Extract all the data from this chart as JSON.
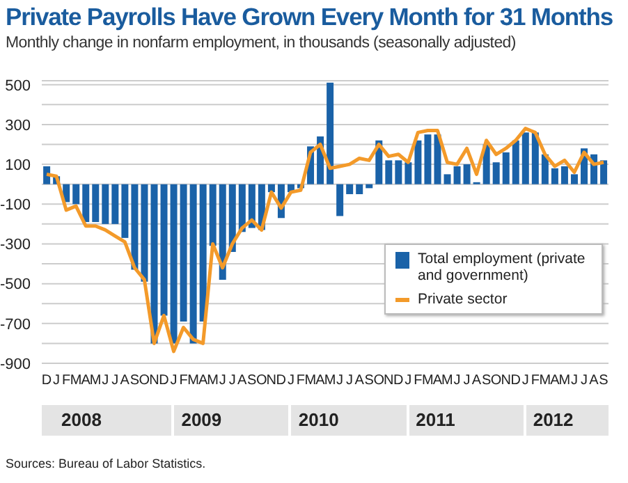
{
  "chart_data": {
    "type": "bar",
    "title": "Private Payrolls Have Grown Every Month for 31 Months",
    "subtitle": "Monthly change in nonfarm employment, in thousands (seasonally adjusted)",
    "categories": [
      "D",
      "J",
      "F",
      "M",
      "A",
      "M",
      "J",
      "J",
      "A",
      "S",
      "O",
      "N",
      "D",
      "J",
      "F",
      "M",
      "A",
      "M",
      "J",
      "J",
      "A",
      "S",
      "O",
      "N",
      "D",
      "J",
      "F",
      "M",
      "A",
      "M",
      "J",
      "J",
      "A",
      "S",
      "O",
      "N",
      "D",
      "J",
      "F",
      "M",
      "A",
      "M",
      "J",
      "J",
      "A",
      "S",
      "O",
      "N",
      "D",
      "J",
      "F",
      "M",
      "A",
      "M",
      "J",
      "J",
      "A",
      "S"
    ],
    "series": [
      {
        "name": "Total employment (private and government)",
        "color": "#1a62a8",
        "values": [
          90,
          40,
          -90,
          -100,
          -190,
          -190,
          -200,
          -200,
          -270,
          -430,
          -490,
          -800,
          -660,
          -800,
          -690,
          -800,
          -690,
          -310,
          -480,
          -340,
          -240,
          -220,
          -230,
          -40,
          -170,
          -40,
          -20,
          190,
          240,
          510,
          -160,
          -50,
          -50,
          -20,
          220,
          120,
          120,
          110,
          220,
          250,
          250,
          50,
          90,
          100,
          10,
          200,
          110,
          160,
          220,
          260,
          260,
          150,
          80,
          90,
          50,
          180,
          150,
          120
        ]
      },
      {
        "name": "Private sector",
        "type": "line",
        "color": "#f39a2a",
        "values": [
          50,
          40,
          -130,
          -110,
          -210,
          -210,
          -230,
          -260,
          -290,
          -420,
          -480,
          -800,
          -660,
          -840,
          -720,
          -780,
          -800,
          -300,
          -420,
          -300,
          -220,
          -180,
          -230,
          -40,
          -120,
          -40,
          -30,
          160,
          200,
          80,
          90,
          100,
          130,
          120,
          200,
          140,
          150,
          110,
          260,
          270,
          270,
          110,
          100,
          180,
          50,
          220,
          150,
          180,
          220,
          280,
          260,
          150,
          90,
          120,
          60,
          160,
          100,
          110
        ]
      }
    ],
    "ylim": [
      -900,
      520
    ],
    "yticks": [
      {
        "value": -900,
        "label": "-900"
      },
      {
        "value": -800,
        "label": null
      },
      {
        "value": -700,
        "label": "-700"
      },
      {
        "value": -600,
        "label": null
      },
      {
        "value": -500,
        "label": "-500"
      },
      {
        "value": -400,
        "label": null
      },
      {
        "value": -300,
        "label": "-300"
      },
      {
        "value": -200,
        "label": null
      },
      {
        "value": -100,
        "label": "-100"
      },
      {
        "value": 0,
        "label": null
      },
      {
        "value": 100,
        "label": "100"
      },
      {
        "value": 200,
        "label": null
      },
      {
        "value": 300,
        "label": "300"
      },
      {
        "value": 400,
        "label": null
      },
      {
        "value": 500,
        "label": "500"
      }
    ],
    "grid": "y",
    "legend": "bottom right",
    "annotations": [
      "2008",
      "2009",
      "2010",
      "2011",
      "2012",
      "Sources: Bureau of Labor Statistics."
    ]
  }
}
